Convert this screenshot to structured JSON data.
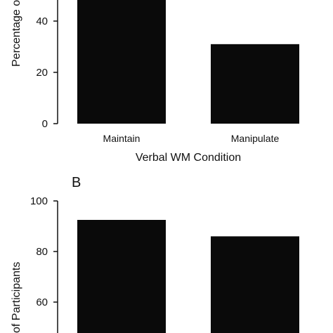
{
  "chart_data": [
    {
      "type": "bar",
      "panel_label": "",
      "categories": [
        "Maintain",
        "Manipulate"
      ],
      "values": [
        48.5,
        31.0
      ],
      "xlabel": "Verbal WM Condition",
      "ylabel": "Percentage o",
      "ylim": [
        0,
        50
      ],
      "yticks": [
        0,
        20,
        40
      ],
      "grid": false,
      "legend": "none",
      "bar_color": "#0a0a0a"
    },
    {
      "type": "bar",
      "panel_label": "B",
      "categories": [
        "",
        ""
      ],
      "values": [
        92.5,
        86.0
      ],
      "xlabel": "",
      "ylabel": "of Participants",
      "ylim": [
        50,
        100
      ],
      "yticks": [
        60,
        80,
        100
      ],
      "grid": false,
      "legend": "none",
      "bar_color": "#0a0a0a"
    }
  ]
}
